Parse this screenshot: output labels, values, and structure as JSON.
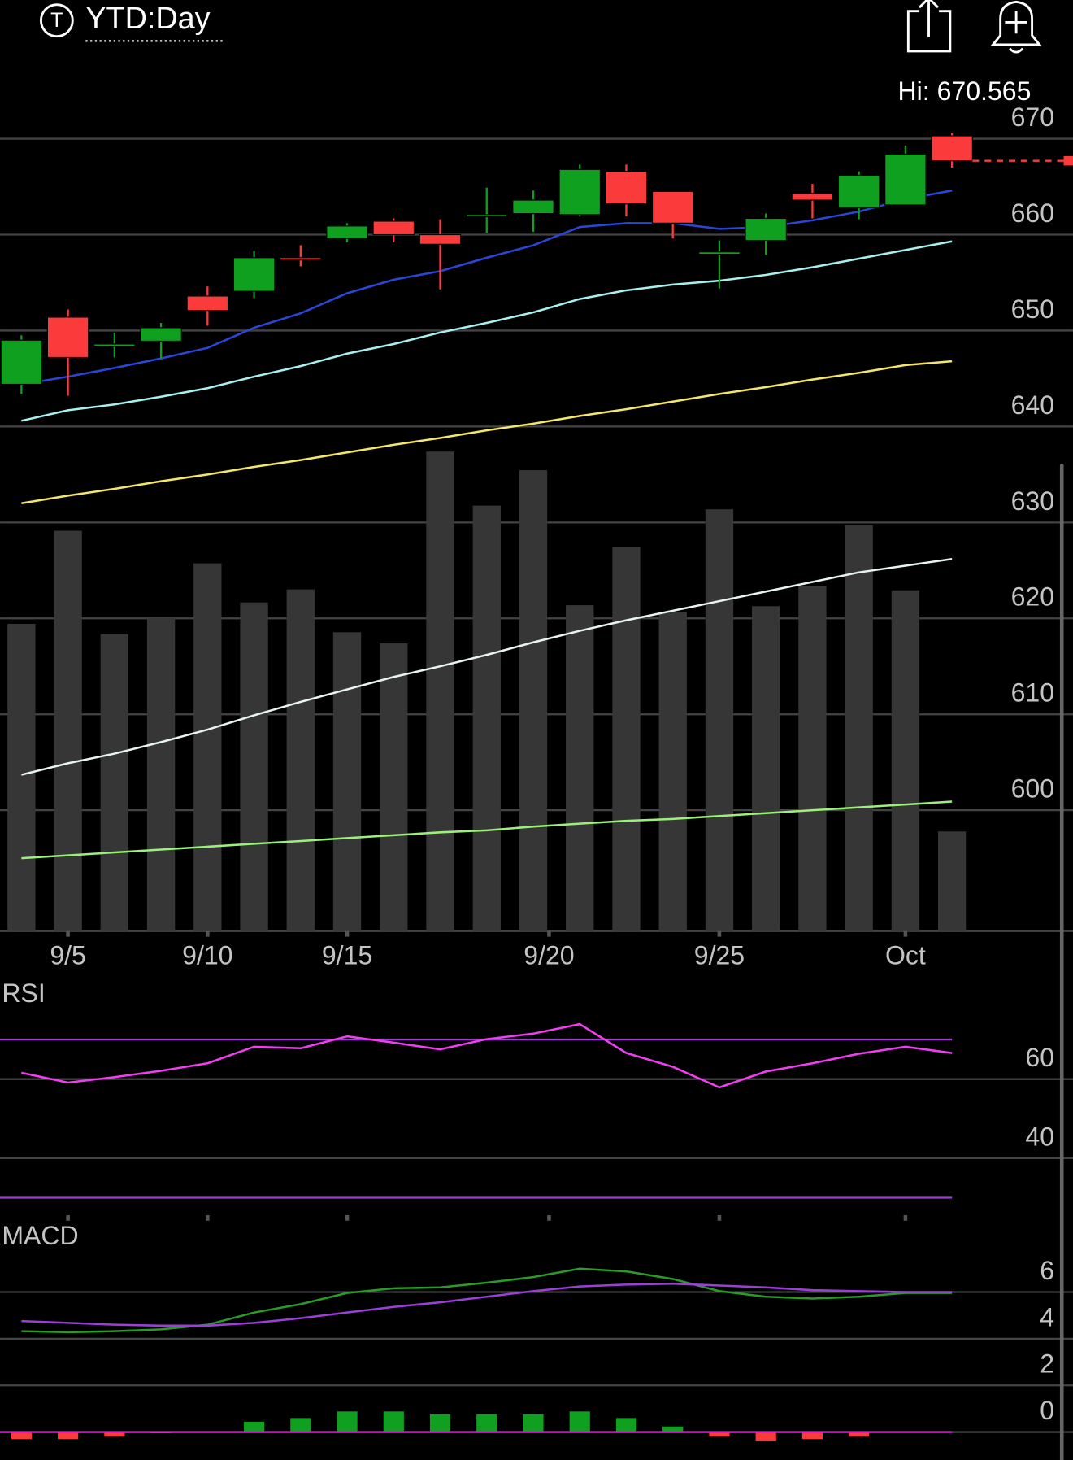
{
  "header": {
    "icon_letter": "T",
    "timeframe": "YTD:Day"
  },
  "chart_data": [
    {
      "type": "candlestick",
      "annotation": "Hi: 670.565",
      "x": [
        0,
        1,
        2,
        3,
        4,
        5,
        6,
        7,
        8,
        9,
        10,
        11,
        12,
        13,
        14,
        15,
        16,
        17,
        18,
        19,
        20
      ],
      "xlim": [
        -0.46,
        22.6
      ],
      "xticks": [
        {
          "value": 1,
          "label": "9/5"
        },
        {
          "value": 4,
          "label": "9/10"
        },
        {
          "value": 7,
          "label": "9/15"
        },
        {
          "value": 11.34,
          "label": "9/20"
        },
        {
          "value": 15,
          "label": "9/25"
        },
        {
          "value": 19,
          "label": "Oct"
        }
      ],
      "ylim": [
        587.4,
        670
      ],
      "yticks": [
        600,
        610,
        620,
        630,
        640,
        650,
        660,
        670
      ],
      "grid": true,
      "up_color": "#10a020",
      "down_color": "#fb3b3b",
      "open": [
        644.4,
        651.4,
        648.4,
        648.9,
        653.6,
        654.1,
        657.6,
        659.6,
        661.4,
        660.0,
        661.9,
        662.2,
        662.1,
        666.6,
        664.5,
        658.0,
        659.4,
        664.3,
        662.8,
        663.1,
        670.3
      ],
      "high": [
        649.5,
        652.2,
        649.8,
        650.8,
        654.6,
        658.3,
        658.9,
        661.2,
        661.7,
        661.6,
        664.9,
        664.6,
        667.3,
        667.3,
        664.5,
        659.4,
        662.2,
        665.3,
        666.6,
        669.3,
        670.565
      ],
      "low": [
        643.4,
        643.2,
        647.2,
        647.1,
        650.5,
        653.4,
        656.7,
        659.2,
        659.2,
        654.3,
        660.2,
        660.3,
        661.9,
        661.9,
        659.6,
        654.4,
        657.9,
        661.7,
        661.6,
        663.1,
        667.0
      ],
      "close": [
        649.0,
        647.2,
        648.6,
        650.3,
        652.1,
        657.6,
        657.4,
        660.9,
        660.0,
        659.0,
        662.1,
        663.6,
        666.8,
        663.2,
        661.2,
        658.2,
        661.7,
        663.6,
        666.2,
        668.4,
        667.7
      ],
      "volume": {
        "color": "#363636",
        "vlim": [
          0,
          520
        ],
        "values": [
          330,
          430,
          319,
          336,
          395,
          353,
          367,
          321,
          309,
          515,
          457,
          495,
          350,
          413,
          343,
          453,
          349,
          371,
          436,
          366,
          107
        ]
      },
      "moving_averages": [
        {
          "color": "#2a46d8",
          "values": [
            644.4,
            645.2,
            646.1,
            647.1,
            648.2,
            650.3,
            651.8,
            653.9,
            655.3,
            656.2,
            657.6,
            658.9,
            660.8,
            661.2,
            661.2,
            660.6,
            660.8,
            661.5,
            662.4,
            663.7,
            664.6
          ]
        },
        {
          "color": "#a8f0f0",
          "values": [
            640.6,
            641.7,
            642.3,
            643.1,
            644.0,
            645.2,
            646.3,
            647.6,
            648.6,
            649.8,
            650.8,
            651.9,
            653.3,
            654.2,
            654.8,
            655.2,
            655.8,
            656.6,
            657.5,
            658.4,
            659.3
          ]
        },
        {
          "color": "#f5e66a",
          "values": [
            632.0,
            632.8,
            633.5,
            634.3,
            635.0,
            635.8,
            636.5,
            637.3,
            638.1,
            638.8,
            639.6,
            640.3,
            641.1,
            641.8,
            642.6,
            643.4,
            644.1,
            644.9,
            645.6,
            646.4,
            646.8
          ]
        },
        {
          "color": "#e8f4f4",
          "values": [
            603.7,
            604.9,
            605.9,
            607.1,
            608.4,
            609.9,
            611.3,
            612.6,
            613.9,
            615.0,
            616.2,
            617.5,
            618.7,
            619.8,
            620.8,
            621.8,
            622.8,
            623.8,
            624.8,
            625.5,
            626.2
          ]
        },
        {
          "color": "#9cf07a",
          "values": [
            595.0,
            595.3,
            595.6,
            595.9,
            596.2,
            596.5,
            596.8,
            597.1,
            597.4,
            597.7,
            597.9,
            598.3,
            598.6,
            598.9,
            599.1,
            599.4,
            599.7,
            600.0,
            600.3,
            600.6,
            600.9
          ]
        }
      ]
    },
    {
      "type": "line",
      "title": "RSI",
      "x": [
        0,
        1,
        2,
        3,
        4,
        5,
        6,
        7,
        8,
        9,
        10,
        11,
        12,
        13,
        14,
        15,
        16,
        17,
        18,
        19,
        20
      ],
      "xlim": [
        -0.46,
        22.6
      ],
      "ylim": [
        25.6,
        77.4
      ],
      "yticks": [
        40,
        60
      ],
      "grid": true,
      "levels": [
        {
          "value": 70,
          "color": "#9a3fd0"
        },
        {
          "value": 30,
          "color": "#9a3fd0"
        }
      ],
      "series": [
        {
          "color": "#f23ef2",
          "values": [
            61.6,
            59.1,
            60.5,
            62.1,
            64.0,
            68.2,
            67.8,
            70.8,
            69.2,
            67.5,
            70.1,
            71.5,
            73.9,
            66.6,
            63.1,
            57.9,
            61.9,
            64.0,
            66.4,
            68.2,
            66.6
          ]
        }
      ]
    },
    {
      "type": "macd",
      "title": "MACD",
      "x": [
        0,
        1,
        2,
        3,
        4,
        5,
        6,
        7,
        8,
        9,
        10,
        11,
        12,
        13,
        14,
        15,
        16,
        17,
        18,
        19,
        20
      ],
      "xlim": [
        -0.46,
        22.6
      ],
      "ylim": [
        -1.2,
        7.7
      ],
      "yticks": [
        0,
        2,
        4,
        6
      ],
      "grid": true,
      "zero_color": "#d21fd2",
      "up_color": "#10a020",
      "down_color": "#fb3b3b",
      "histogram": [
        -0.3,
        -0.3,
        -0.2,
        -0.05,
        0,
        0.44,
        0.6,
        0.88,
        0.88,
        0.76,
        0.76,
        0.76,
        0.88,
        0.6,
        0.24,
        -0.2,
        -0.4,
        -0.3,
        -0.2,
        0,
        0
      ],
      "series": [
        {
          "color": "#2a9a2a",
          "values": [
            4.32,
            4.28,
            4.32,
            4.4,
            4.6,
            5.12,
            5.48,
            5.96,
            6.16,
            6.2,
            6.4,
            6.64,
            7.0,
            6.88,
            6.56,
            6.04,
            5.8,
            5.72,
            5.8,
            5.96,
            5.96
          ]
        },
        {
          "color": "#9b3fd8",
          "values": [
            4.76,
            4.68,
            4.6,
            4.56,
            4.56,
            4.68,
            4.88,
            5.12,
            5.36,
            5.56,
            5.8,
            6.04,
            6.24,
            6.32,
            6.36,
            6.28,
            6.2,
            6.08,
            6.04,
            6.0,
            6.0
          ]
        }
      ]
    }
  ]
}
